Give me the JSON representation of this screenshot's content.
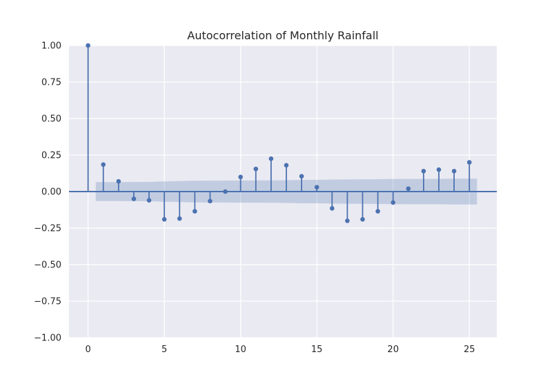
{
  "chart_data": {
    "type": "stem",
    "title": "Autocorrelation of Monthly Rainfall",
    "xlabel": "",
    "ylabel": "",
    "xlim": [
      -1.25,
      26.8
    ],
    "ylim": [
      -1.0,
      1.0
    ],
    "xticks": [
      0,
      5,
      10,
      15,
      20,
      25
    ],
    "yticks": [
      1.0,
      0.75,
      0.5,
      0.25,
      0.0,
      -0.25,
      -0.5,
      -0.75,
      -1.0
    ],
    "ytick_labels": [
      "1.00",
      "0.75",
      "0.50",
      "0.25",
      "0.00",
      "−0.25",
      "−0.50",
      "−0.75",
      "−1.00"
    ],
    "xtick_labels": [
      "0",
      "5",
      "10",
      "15",
      "20",
      "25"
    ],
    "grid": true,
    "colors": {
      "stem": "#4c72b0",
      "band": "#4c72b0",
      "background": "#eaeaf2",
      "grid": "#ffffff"
    },
    "lags": [
      0,
      1,
      2,
      3,
      4,
      5,
      6,
      7,
      8,
      9,
      10,
      11,
      12,
      13,
      14,
      15,
      16,
      17,
      18,
      19,
      20,
      21,
      22,
      23,
      24,
      25
    ],
    "acf": [
      1.0,
      0.185,
      0.07,
      -0.05,
      -0.06,
      -0.19,
      -0.185,
      -0.135,
      -0.065,
      0.0,
      0.1,
      0.155,
      0.225,
      0.18,
      0.105,
      0.03,
      -0.115,
      -0.2,
      -0.19,
      -0.135,
      -0.075,
      0.02,
      0.14,
      0.15,
      0.14,
      0.2
    ],
    "confidence_band": {
      "lags": [
        0.5,
        1,
        2,
        3,
        4,
        5,
        6,
        7,
        8,
        9,
        10,
        11,
        12,
        13,
        14,
        15,
        16,
        17,
        18,
        19,
        20,
        21,
        22,
        23,
        24,
        25,
        25.5
      ],
      "upper": [
        0.065,
        0.065,
        0.065,
        0.066,
        0.066,
        0.07,
        0.072,
        0.074,
        0.075,
        0.075,
        0.076,
        0.076,
        0.077,
        0.078,
        0.08,
        0.08,
        0.082,
        0.083,
        0.084,
        0.085,
        0.086,
        0.087,
        0.087,
        0.087,
        0.088,
        0.088,
        0.088
      ],
      "lower": [
        -0.065,
        -0.065,
        -0.065,
        -0.066,
        -0.066,
        -0.07,
        -0.072,
        -0.074,
        -0.075,
        -0.075,
        -0.076,
        -0.076,
        -0.077,
        -0.078,
        -0.08,
        -0.08,
        -0.082,
        -0.083,
        -0.084,
        -0.085,
        -0.086,
        -0.087,
        -0.087,
        -0.087,
        -0.088,
        -0.088,
        -0.088
      ]
    }
  }
}
